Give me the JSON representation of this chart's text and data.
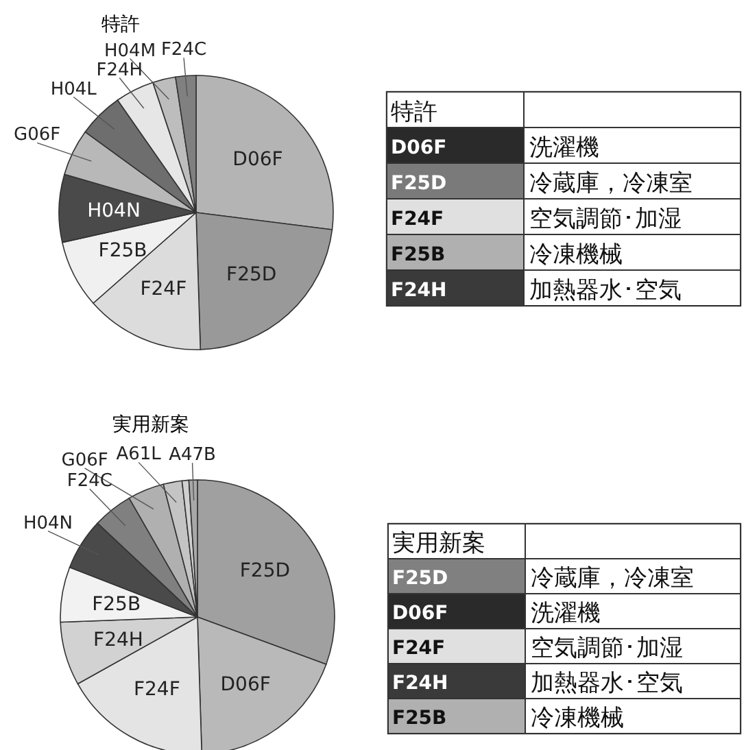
{
  "chart_data": [
    {
      "type": "pie",
      "title": "特許",
      "categories": [
        "D06F",
        "F25D",
        "F24F",
        "F25B",
        "H04N",
        "G06F",
        "H04L",
        "F24H",
        "H04M",
        "F24C"
      ],
      "values": [
        27,
        22.5,
        14,
        8,
        8,
        5.5,
        5.3,
        4.6,
        2.7,
        2.4
      ],
      "colors": [
        "#b4b4b4",
        "#999999",
        "#dcdcdc",
        "#f0f0f0",
        "#4a4a4a",
        "#b8b8b8",
        "#6e6e6e",
        "#e6e6e6",
        "#bdbdbd",
        "#808080"
      ]
    },
    {
      "type": "other",
      "title": "特許",
      "categories": [
        "D06F",
        "F25D",
        "F24F",
        "F25B",
        "F24H"
      ],
      "colors": [
        "#2a2a2a",
        "#7a7a7a",
        "#e0e0e0",
        "#b0b0b0",
        "#3a3a3a"
      ],
      "annotations": [
        "洗濯機",
        "冷蔵庫，冷凍室",
        "空気調節･加湿",
        "冷凍機械",
        "加熱器水･空気"
      ]
    },
    {
      "type": "pie",
      "title": "実用新案",
      "categories": [
        "F25D",
        "D06F",
        "F24F",
        "F24H",
        "F25B",
        "H04N",
        "F24C",
        "G06F",
        "A61L",
        null,
        "A47B"
      ],
      "values": [
        30.6,
        18.9,
        17.4,
        7.5,
        6.5,
        6.1,
        4.7,
        4.3,
        2.2,
        0.8,
        1.0
      ],
      "colors": [
        "#a0a0a0",
        "#b9b9b9",
        "#e4e4e4",
        "#d2d2d2",
        "#f2f2f2",
        "#4a4a4a",
        "#808080",
        "#b0b0b0",
        "#c4c4c4",
        "#d0d0d0",
        "#a8a8a8"
      ]
    },
    {
      "type": "other",
      "title": "実用新案",
      "categories": [
        "F25D",
        "D06F",
        "F24F",
        "F24H",
        "F25B"
      ],
      "colors": [
        "#808080",
        "#2a2a2a",
        "#e0e0e0",
        "#3a3a3a",
        "#b0b0b0"
      ],
      "annotations": [
        "冷蔵庫，冷凍室",
        "洗濯機",
        "空気調節･加湿",
        "加熱器水･空気",
        "冷凍機械"
      ]
    }
  ]
}
